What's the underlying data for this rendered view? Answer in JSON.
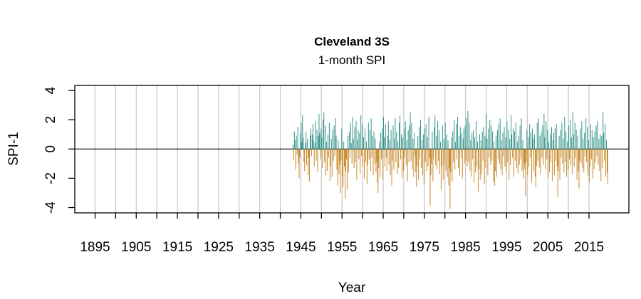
{
  "page": {
    "background": "#ffffff"
  },
  "chart_data": {
    "type": "bar",
    "title": "Cleveland 3S",
    "subtitle": "1-month SPI",
    "xlabel": "Year",
    "ylabel": "SPI-1",
    "legend": "none",
    "grid": "vertical-only",
    "xlim": [
      1890,
      2025
    ],
    "ylim": [
      -4.35,
      4.35
    ],
    "x_tick_years_minor": {
      "start": 1895,
      "end": 2015,
      "step": 5
    },
    "x_tick_label_years": [
      1895,
      1905,
      1915,
      1925,
      1935,
      1945,
      1955,
      1965,
      1975,
      1985,
      1995,
      2005,
      2015
    ],
    "y_tick_values": [
      -4,
      -2,
      0,
      2,
      4
    ],
    "y_tick_labels": [
      "-4",
      "-2",
      "0",
      "2",
      "4"
    ],
    "zero_line": 0,
    "colors": {
      "positive": "#35958B",
      "negative": "#C8892B",
      "grid": "#C6C6C6",
      "axis": "#000000",
      "text": "#000000"
    },
    "series": [
      {
        "name": "1-month SPI (monthly values, Cleveland 3S)",
        "start_year": 1943.08,
        "step_years": 0.1666667,
        "value_scale": 0.1,
        "values_tenths": "3 -8 12 6 -14 9 -4 15 -10 -20 -6 11 18 5 23 8 -9 -15 4 12 -11 7 -18 -6 -22 9 14 -5 10 17 6 -12 4 19 -8 13 -16 9 24 11 -7 14 8 -13 20 25 -9 16 -18 5 -15 10 -6 18 -22 -12 7 -19 13 -8 16 -5 21 9 -14 -25 6 -17 -11 -30 -8 14 -19 -26 5 -12 -34 -15 -7 -28 9 -16 12 -6 18 4 -10 22 7 -13 15 -9 19 -21 6 13 -7 11 -17 23 -5 17 -12 8 -20 14 -9 5 -24 -11 18 -7 13 -15 21 -6 9 -18 12 -10 7 -16 -9 -23 -30 -13 5 -19 11 -7 14 -21 22 8 -12 17 -6 -15 9 19 -11 6 -18 13 -25 -8 16 -14 7 21 -9 12 -17 5 -13 18 23 -7 10 -20 8 -15 14 -6 19 -11 6 -22 13 -9 16 25 -8 18 -14 7 -19 11 -5 -16 -26 -12 9 -21 15 -7 20 -13 6 -18 10 -24 14 -9 17 -15 8 -12 22 -6 -39 -18 -10 12 -22 -7 15 23 -11 9 -14 19 -8 13 -17 5 -28 -12 16 -21 7 -11 18 -15 10 -19 6 -25 -13 -41 -16 8 -22 12 -9 20 -14 5 17 -7 22 -13 9 -18 15 -6 11 -20 7 14 -10 16 -8 21 -12 26 -9 18 -15 6 -19 11 -7 13 -23 8 -16 19 -12 5 -29 -14 10 -21 6 -17 12 -8 15 -24 9 -13 24 7 -18 14 -6 20 -11 16 -8 12 -22 5 -25 -15 9 -19 13 -7 17 -10 21 -14 6 -18 11 -5 15 -12 8 -16 19 -9 13 -21 7 -11 23 10 -6 14 -19 12 -8 18 -13 5 -17 9 -11 16 -7 21 -15 6 -20 -10 -14 -32 -9 13 -18 8 -12 17 -6 11 -23 14 7 -15 10 -19 -26 -12 18 -8 21 -13 9 -17 12 -6 16 -11 24 8 -14 19 -7 13 -20 5 -16 10 -9 15 -22 6 11 -18 14 -8 17 -12 -33 -15 9 -21 13 -6 18 -10 7 -16 22 -9 12 -19 5 -14 16 -7 20 -11 8 -17 25 10 -12 18 -6 13 -21 9 -15 -27 -8 14 -10 19 -13 7 -16 11 -5 21 -9 15 -18 6 -23 -12 17 -7 13 -20 8 -14 12 -9 16 -5 19 -11 7 -15 10 -22 9 -13 25 11 -8 17 -19 6 -16 -24"
      }
    ]
  }
}
